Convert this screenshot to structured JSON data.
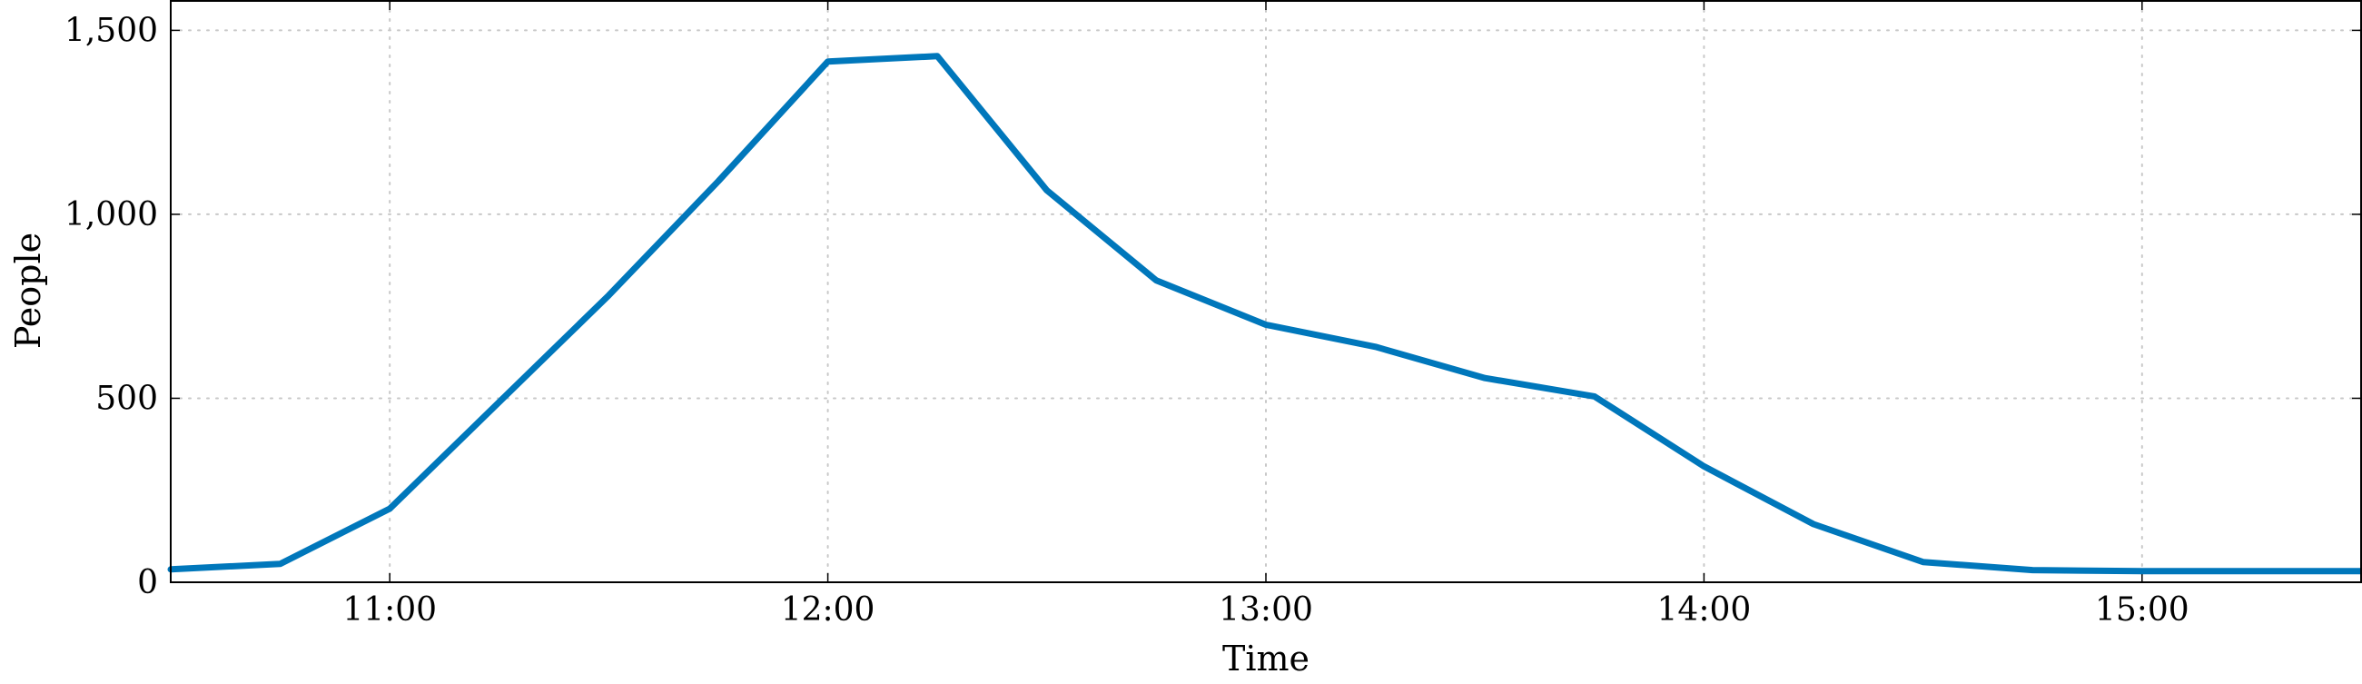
{
  "chart_data": {
    "type": "line",
    "xlabel": "Time",
    "ylabel": "People",
    "x_ticks": [
      "11:00",
      "12:00",
      "13:00",
      "14:00",
      "15:00"
    ],
    "x_tick_values": [
      660,
      720,
      780,
      840,
      900
    ],
    "y_ticks": [
      "0",
      "500",
      "1,000",
      "1,500"
    ],
    "y_tick_values": [
      0,
      500,
      1000,
      1500
    ],
    "xlim": [
      "10:30",
      "15:30"
    ],
    "ylim": [
      0,
      1580
    ],
    "grid": true,
    "series": [
      {
        "color": "#0077bb",
        "x": [
          "10:30",
          "10:45",
          "11:00",
          "11:15",
          "11:30",
          "11:45",
          "12:00",
          "12:15",
          "12:30",
          "12:45",
          "13:00",
          "13:15",
          "13:30",
          "13:45",
          "14:00",
          "14:15",
          "14:30",
          "14:45",
          "15:00",
          "15:15",
          "15:30"
        ],
        "values": [
          35,
          50,
          200,
          490,
          780,
          1090,
          1415,
          1430,
          1065,
          820,
          700,
          640,
          555,
          505,
          315,
          158,
          55,
          33,
          30,
          30,
          30
        ]
      }
    ]
  }
}
